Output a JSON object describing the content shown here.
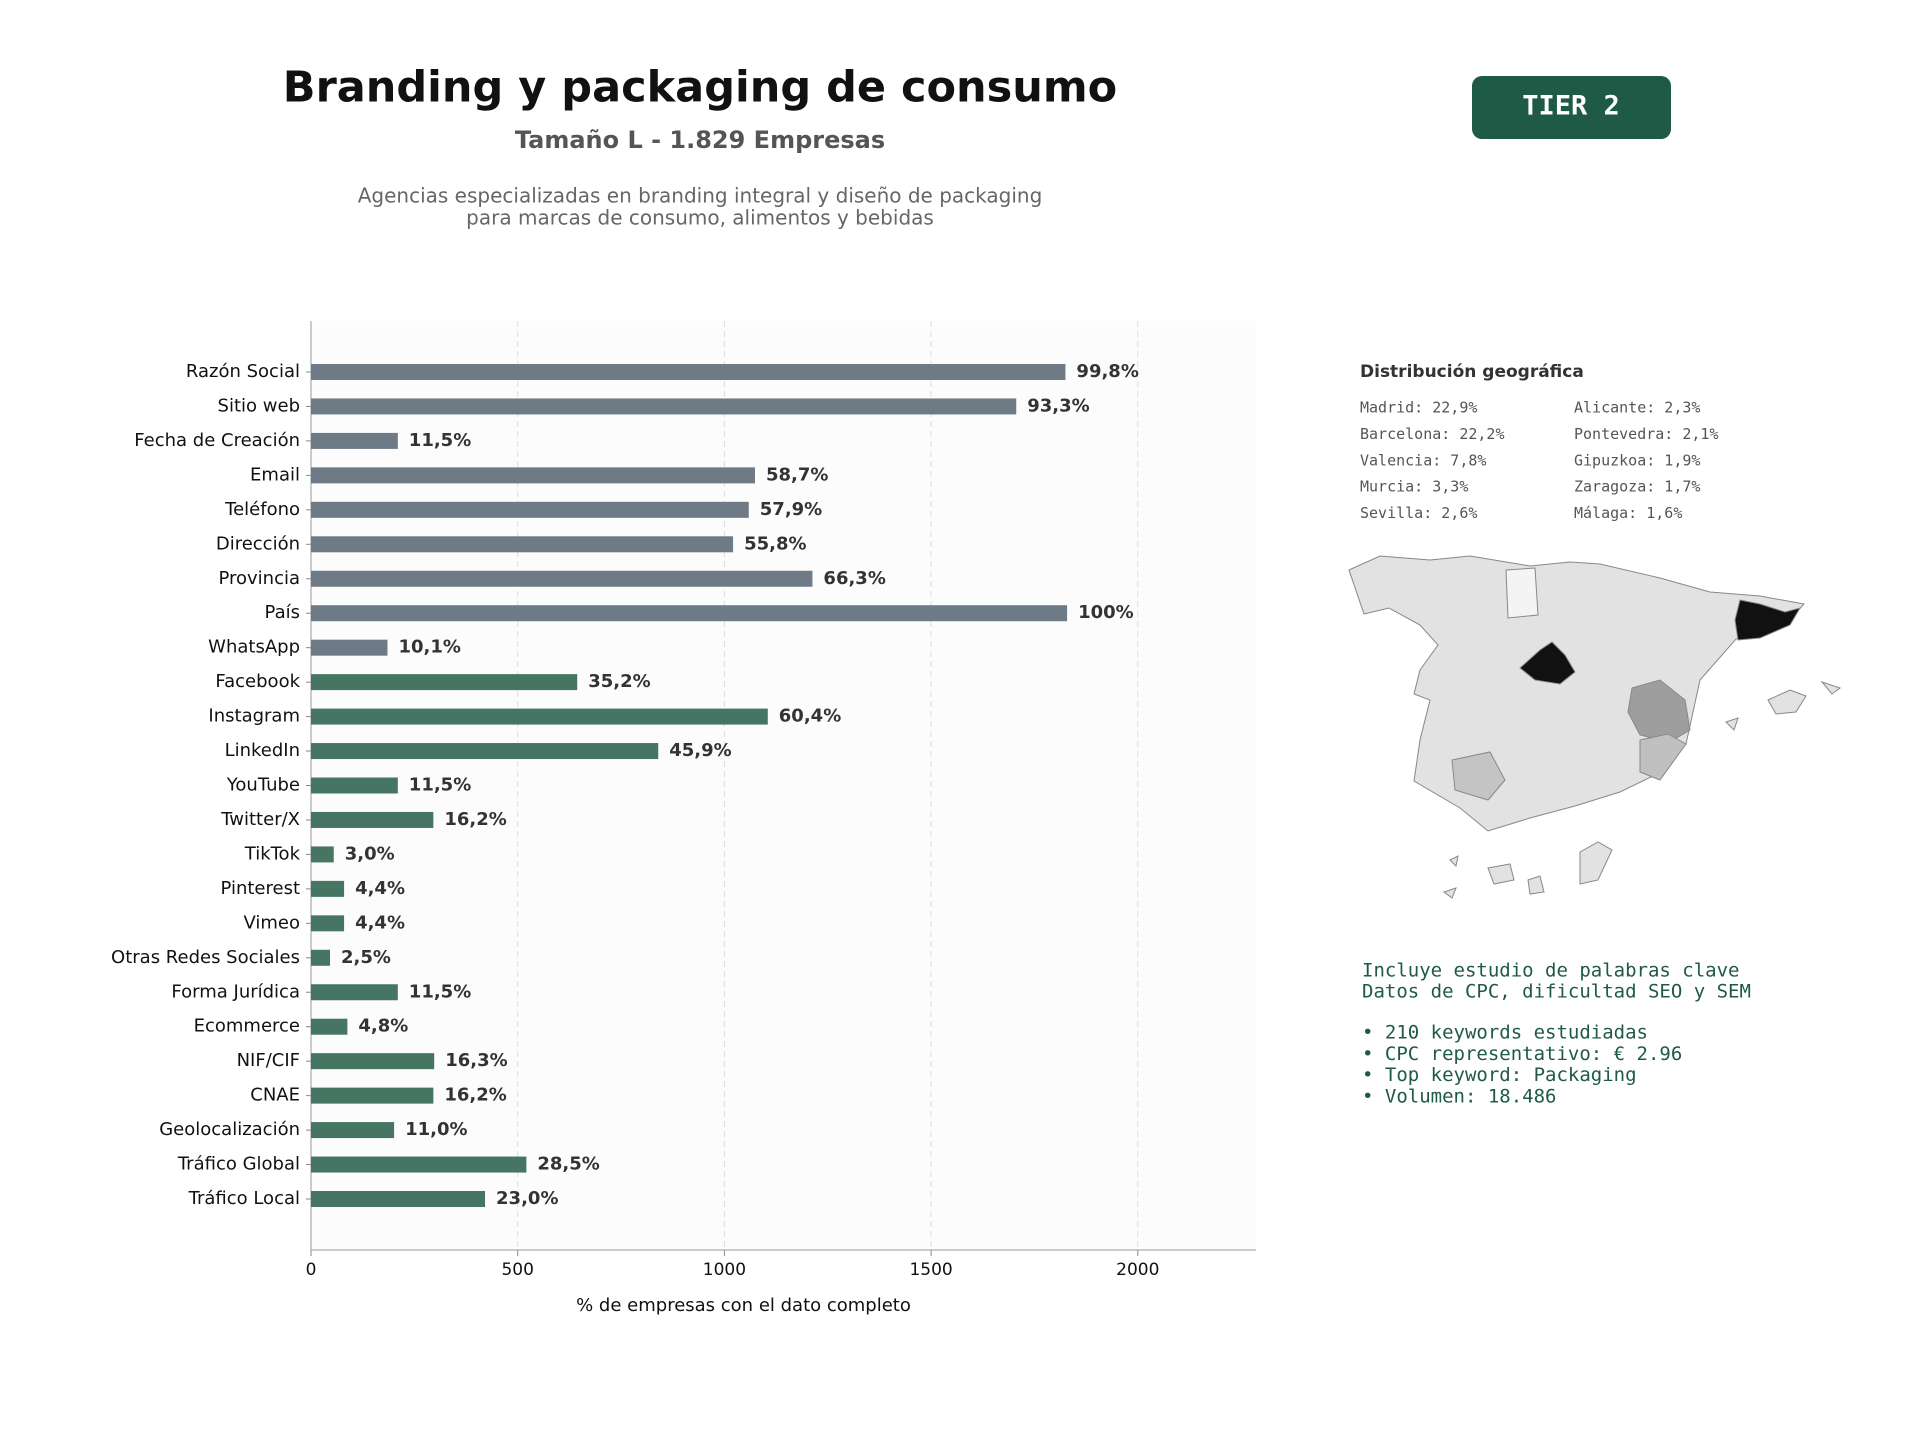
{
  "chart_data": {
    "type": "bar",
    "orientation": "horizontal",
    "title": "Branding y packaging de consumo",
    "subtitle": "Tamaño L - 1.829 Empresas",
    "description": [
      "Agencias especializadas en branding integral y diseño de packaging",
      "para marcas de consumo, alimentos y bebidas"
    ],
    "x_label": "% de empresas con el dato completo",
    "categories": [
      "Razón Social",
      "Sitio web",
      "Fecha de Creación",
      "Email",
      "Teléfono",
      "Dirección",
      "Provincia",
      "País",
      "WhatsApp",
      "Facebook",
      "Instagram",
      "LinkedIn",
      "YouTube",
      "Twitter/X",
      "TikTok",
      "Pinterest",
      "Vimeo",
      "Otras Redes Sociales",
      "Forma Jurídica",
      "Ecommerce",
      "NIF/CIF",
      "CNAE",
      "Geolocalización",
      "Tráfico Global",
      "Tráfico Local"
    ],
    "values": [
      1825,
      1706,
      210,
      1074,
      1059,
      1021,
      1213,
      1829,
      185,
      644,
      1105,
      840,
      210,
      296,
      55,
      80,
      80,
      46,
      210,
      88,
      298,
      296,
      201,
      521,
      421
    ],
    "value_labels": [
      "99,8%",
      "93,3%",
      "11,5%",
      "58,7%",
      "57,9%",
      "55,8%",
      "66,3%",
      "100%",
      "10,1%",
      "35,2%",
      "60,4%",
      "45,9%",
      "11,5%",
      "16,2%",
      "3,0%",
      "4,4%",
      "4,4%",
      "2,5%",
      "11,5%",
      "4,8%",
      "16,3%",
      "16,2%",
      "11,0%",
      "28,5%",
      "23,0%"
    ],
    "bar_colors": [
      "#6e7a85",
      "#6e7a85",
      "#6e7a85",
      "#6e7a85",
      "#6e7a85",
      "#6e7a85",
      "#6e7a85",
      "#6e7a85",
      "#6e7a85",
      "#467563",
      "#467563",
      "#467563",
      "#467563",
      "#467563",
      "#467563",
      "#467563",
      "#467563",
      "#467563",
      "#467563",
      "#467563",
      "#467563",
      "#467563",
      "#467563",
      "#467563",
      "#467563"
    ],
    "xlim": [
      0,
      2286
    ],
    "xticks": [
      0,
      500,
      1000,
      1500,
      2000
    ],
    "grid": true
  },
  "badge": "TIER 2",
  "geo": {
    "title": "Distribución geográfica",
    "items": [
      "Madrid: 22,9%",
      "Barcelona: 22,2%",
      "Valencia: 7,8%",
      "Murcia: 3,3%",
      "Sevilla: 2,6%",
      "Alicante: 2,3%",
      "Pontevedra: 2,1%",
      "Gipuzkoa: 1,9%",
      "Zaragoza: 1,7%",
      "Málaga: 1,6%"
    ]
  },
  "keywords": {
    "intro": [
      "Incluye estudio de palabras clave",
      "Datos de CPC, dificultad SEO y SEM"
    ],
    "bullets": [
      "• 210 keywords estudiadas",
      "• CPC representativo: € 2.96",
      "• Top keyword: Packaging",
      "• Volumen: 18.486"
    ]
  }
}
